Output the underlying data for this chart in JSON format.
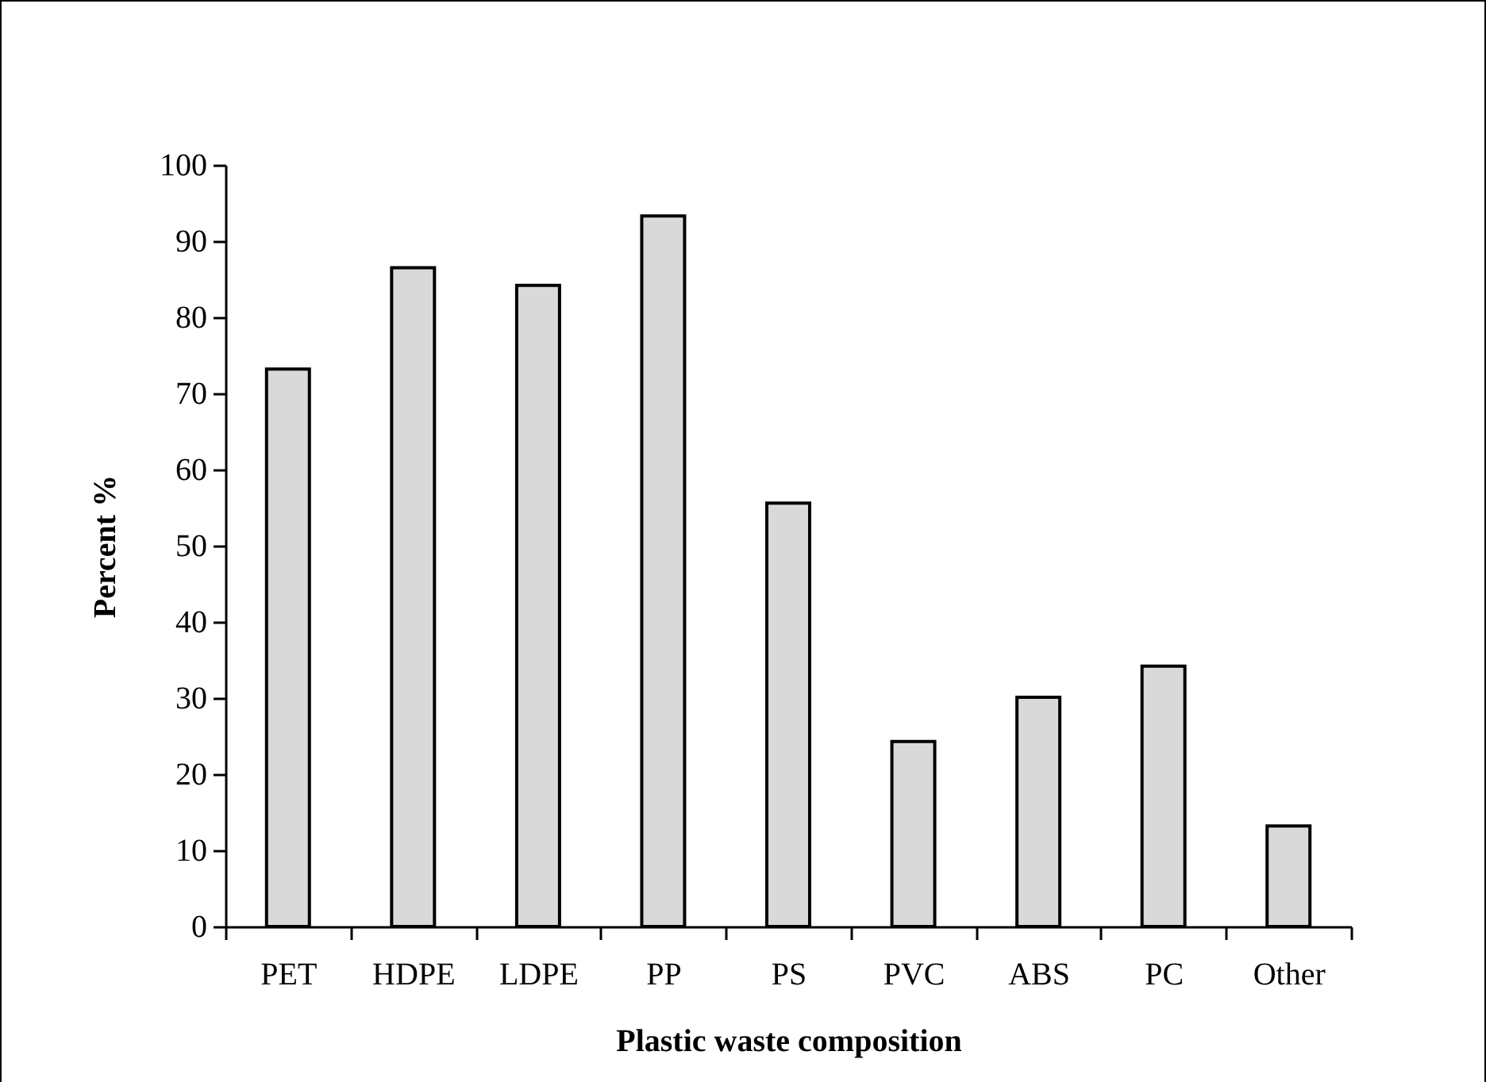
{
  "chart_data": {
    "type": "bar",
    "xlabel": "Plastic waste composition",
    "ylabel": "Percent %",
    "categories": [
      "PET",
      "HDPE",
      "LDPE",
      "PP",
      "PS",
      "PVC",
      "ABS",
      "PC",
      "Other"
    ],
    "values": [
      73.2,
      86.5,
      84.2,
      93.3,
      55.6,
      24.3,
      30.1,
      34.2,
      13.2
    ],
    "color": "#d9d9d9",
    "ylim": [
      0,
      100
    ],
    "yticks": [
      0,
      10,
      20,
      30,
      40,
      50,
      60,
      70,
      80,
      90,
      100
    ],
    "grid": false
  }
}
